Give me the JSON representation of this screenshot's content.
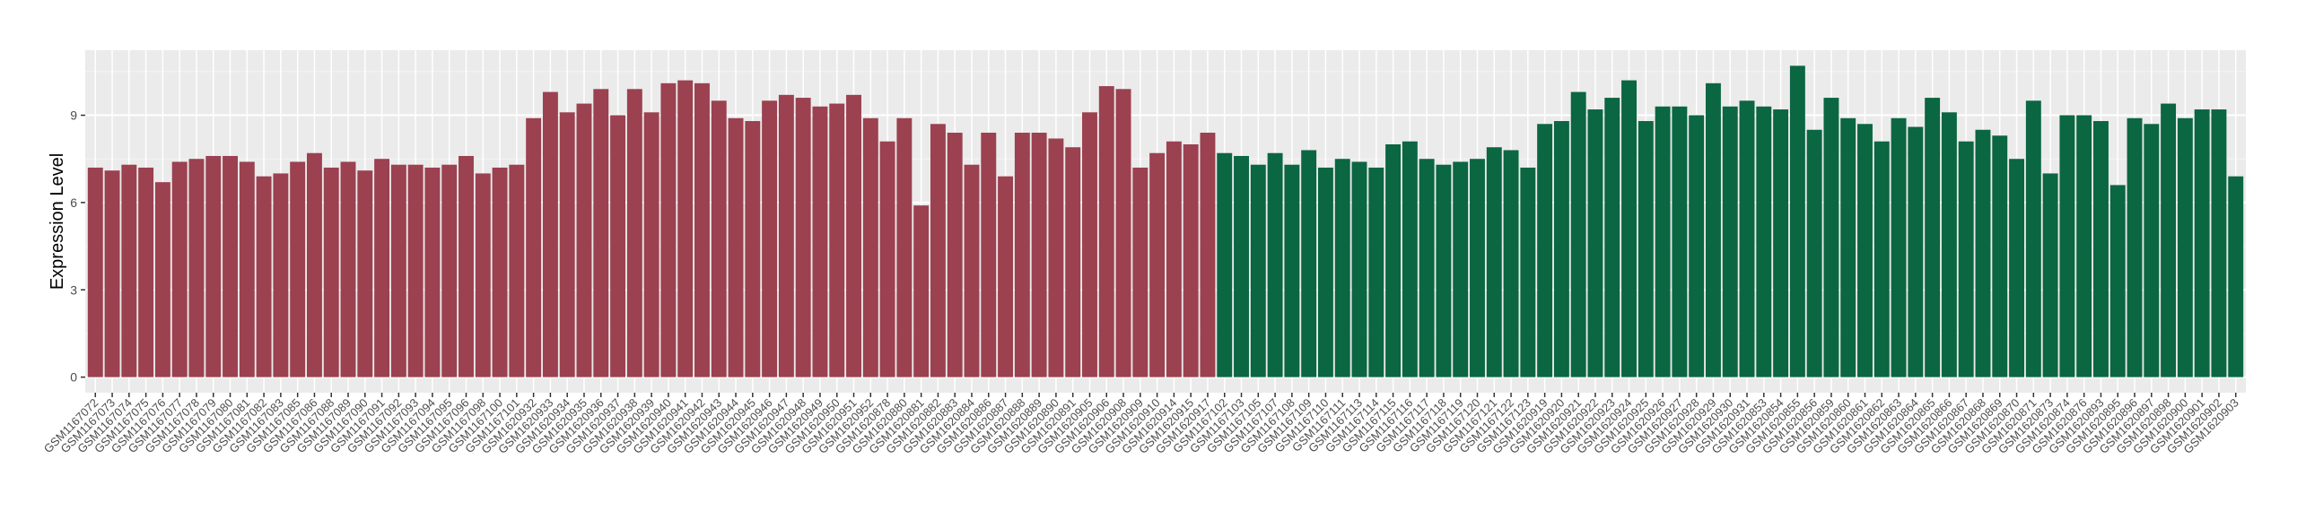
{
  "chart_data": {
    "type": "bar",
    "y_label": "Expression Level",
    "categories": [
      "GSM1167072",
      "GSM1167073",
      "GSM1167074",
      "GSM1167075",
      "GSM1167076",
      "GSM1167077",
      "GSM1167078",
      "GSM1167079",
      "GSM1167080",
      "GSM1167081",
      "GSM1167082",
      "GSM1167083",
      "GSM1167085",
      "GSM1167086",
      "GSM1167088",
      "GSM1167089",
      "GSM1167090",
      "GSM1167091",
      "GSM1167092",
      "GSM1167093",
      "GSM1167094",
      "GSM1167095",
      "GSM1167096",
      "GSM1167098",
      "GSM1167100",
      "GSM1167101",
      "GSM1620932",
      "GSM1620933",
      "GSM1620934",
      "GSM1620935",
      "GSM1620936",
      "GSM1620937",
      "GSM1620938",
      "GSM1620939",
      "GSM1620940",
      "GSM1620941",
      "GSM1620942",
      "GSM1620943",
      "GSM1620944",
      "GSM1620945",
      "GSM1620946",
      "GSM1620947",
      "GSM1620948",
      "GSM1620949",
      "GSM1620950",
      "GSM1620951",
      "GSM1620952",
      "GSM1620878",
      "GSM1620880",
      "GSM1620881",
      "GSM1620882",
      "GSM1620883",
      "GSM1620884",
      "GSM1620886",
      "GSM1620887",
      "GSM1620888",
      "GSM1620889",
      "GSM1620890",
      "GSM1620891",
      "GSM1620905",
      "GSM1620906",
      "GSM1620908",
      "GSM1620909",
      "GSM1620910",
      "GSM1620914",
      "GSM1620915",
      "GSM1620917",
      "GSM1167102",
      "GSM1167103",
      "GSM1167105",
      "GSM1167107",
      "GSM1167108",
      "GSM1167109",
      "GSM1167110",
      "GSM1167111",
      "GSM1167113",
      "GSM1167114",
      "GSM1167115",
      "GSM1167116",
      "GSM1167117",
      "GSM1167118",
      "GSM1167119",
      "GSM1167120",
      "GSM1167121",
      "GSM1167122",
      "GSM1167123",
      "GSM1620919",
      "GSM1620920",
      "GSM1620921",
      "GSM1620922",
      "GSM1620923",
      "GSM1620924",
      "GSM1620925",
      "GSM1620926",
      "GSM1620927",
      "GSM1620928",
      "GSM1620929",
      "GSM1620930",
      "GSM1620931",
      "GSM1620853",
      "GSM1620854",
      "GSM1620855",
      "GSM1620856",
      "GSM1620859",
      "GSM1620860",
      "GSM1620861",
      "GSM1620862",
      "GSM1620863",
      "GSM1620864",
      "GSM1620865",
      "GSM1620866",
      "GSM1620867",
      "GSM1620868",
      "GSM1620869",
      "GSM1620870",
      "GSM1620871",
      "GSM1620873",
      "GSM1620874",
      "GSM1620876",
      "GSM1620893",
      "GSM1620895",
      "GSM1620896",
      "GSM1620897",
      "GSM1620898",
      "GSM1620900",
      "GSM1620901",
      "GSM1620902",
      "GSM1620903"
    ],
    "series": [
      {
        "color": "#9b4150",
        "values": [
          7.2,
          7.1,
          7.3,
          7.2,
          6.7,
          7.4,
          7.5,
          7.6,
          7.6,
          7.4,
          6.9,
          7.0,
          7.4,
          7.7,
          7.2,
          7.4,
          7.1,
          7.5,
          7.3,
          7.3,
          7.2,
          7.3,
          7.6,
          7.0,
          7.2,
          7.3,
          8.9,
          9.8,
          9.1,
          9.4,
          9.9,
          9.0,
          9.9,
          9.1,
          10.1,
          10.2,
          10.1,
          9.5,
          8.9,
          8.8,
          9.5,
          9.7,
          9.6,
          9.3,
          9.4,
          9.7,
          8.9,
          8.1,
          8.9,
          5.9,
          8.7,
          8.4,
          7.3,
          8.4,
          6.9,
          8.4,
          8.4,
          8.2,
          7.9,
          9.1,
          10.0,
          9.9,
          7.2,
          7.7,
          8.1,
          8.0,
          8.4,
          null,
          null,
          null,
          null,
          null,
          null,
          null,
          null,
          null,
          null,
          null,
          null,
          null,
          null,
          null,
          null,
          null,
          null,
          null,
          null,
          null,
          null,
          null,
          null,
          null,
          null,
          null,
          null,
          null,
          null,
          null,
          null,
          null,
          null,
          null,
          null,
          null,
          null,
          null,
          null,
          null,
          null,
          null,
          null,
          null,
          null,
          null,
          null,
          null,
          null,
          null,
          null,
          null,
          null,
          null,
          null,
          null,
          null,
          null,
          null,
          null
        ]
      },
      {
        "color": "#0b6642",
        "values": [
          null,
          null,
          null,
          null,
          null,
          null,
          null,
          null,
          null,
          null,
          null,
          null,
          null,
          null,
          null,
          null,
          null,
          null,
          null,
          null,
          null,
          null,
          null,
          null,
          null,
          null,
          null,
          null,
          null,
          null,
          null,
          null,
          null,
          null,
          null,
          null,
          null,
          null,
          null,
          null,
          null,
          null,
          null,
          null,
          null,
          null,
          null,
          null,
          null,
          null,
          null,
          null,
          null,
          null,
          null,
          null,
          null,
          null,
          null,
          null,
          null,
          null,
          null,
          null,
          null,
          null,
          null,
          7.7,
          7.6,
          7.3,
          7.7,
          7.3,
          7.8,
          7.2,
          7.5,
          7.4,
          7.2,
          8.0,
          8.1,
          7.5,
          7.3,
          7.4,
          7.5,
          7.9,
          7.8,
          7.2,
          8.7,
          8.8,
          9.8,
          9.2,
          9.6,
          10.2,
          8.8,
          9.3,
          9.3,
          9.0,
          10.1,
          9.3,
          9.5,
          9.3,
          9.2,
          10.7,
          8.5,
          9.6,
          8.9,
          8.7,
          8.1,
          8.9,
          8.6,
          9.6,
          9.1,
          8.1,
          8.5,
          8.3,
          7.5,
          9.5,
          7.0,
          9.0,
          9.0,
          8.8,
          6.6,
          8.9,
          8.7,
          9.4,
          8.9,
          9.2,
          9.2,
          6.9
        ]
      }
    ],
    "ylim": [
      -0.535,
      11.235
    ],
    "yticks": [
      0,
      3,
      6,
      9
    ],
    "grid": true,
    "panel_color": "#ebebeb"
  }
}
